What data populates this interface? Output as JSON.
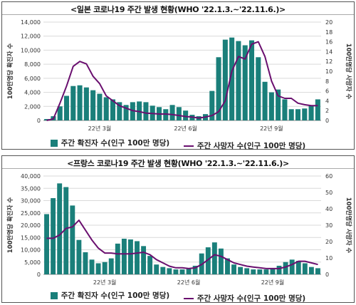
{
  "colors": {
    "cases": "#1a7f7a",
    "deaths": "#6a0f6f",
    "grid": "#d9d9d9"
  },
  "chart_data": [
    {
      "type": "bar",
      "title": "<일본 코로나19 주간 발생 현황(WHO '22.1.3.~'22.11.6.)>",
      "ylabel": "100만명당 확진자 수",
      "y2label": "100만명당 사망자 수",
      "ylim": [
        0,
        14000
      ],
      "y2lim": [
        0,
        20
      ],
      "yticks": [
        "0",
        "2,000",
        "4,000",
        "6,000",
        "8,000",
        "10,000",
        "12,000",
        "14,000"
      ],
      "y2ticks": [
        "0",
        "2",
        "4",
        "6",
        "8",
        "10",
        "12",
        "14",
        "16",
        "18",
        "20"
      ],
      "xticks": [
        {
          "label": "22년 3월",
          "index": 8
        },
        {
          "label": "22년 6월",
          "index": 21
        },
        {
          "label": "22년 9월",
          "index": 34
        }
      ],
      "series": [
        {
          "name": "주간 확진자 수(인구 100만 명당)",
          "kind": "bar",
          "values": [
            200,
            600,
            2000,
            3500,
            4900,
            5000,
            4700,
            4300,
            3800,
            3300,
            3000,
            2600,
            2200,
            2600,
            2700,
            2600,
            2100,
            1900,
            1600,
            2200,
            1900,
            1400,
            800,
            600,
            900,
            4200,
            9000,
            11500,
            11800,
            11300,
            10700,
            11400,
            9000,
            5500,
            4000,
            4400,
            3000,
            1600,
            1600,
            1700,
            2100,
            3000
          ]
        },
        {
          "name": "주간 사망자 수(인구 100만 명당)",
          "kind": "line",
          "values": [
            0,
            0.3,
            3.5,
            7,
            11,
            12,
            11.5,
            9,
            7.5,
            5,
            4,
            3,
            2.5,
            2,
            1.8,
            1.5,
            1.4,
            1.3,
            1.3,
            1.2,
            1,
            0.8,
            0.7,
            0.5,
            0.7,
            1,
            1.8,
            4,
            10,
            13,
            12.5,
            15.5,
            16,
            13,
            8,
            5,
            4.5,
            4.5,
            3.5,
            3.2,
            3,
            3
          ]
        }
      ],
      "legend": "bottom"
    },
    {
      "type": "bar",
      "title": "<프랑스 코로나19 주간 발생 현황(WHO '22.1.3.~'22.11.6.)>",
      "ylabel": "100만명당 확진자 수",
      "y2label": "100만명당 사망자 수",
      "ylim": [
        0,
        40000
      ],
      "y2lim": [
        0,
        60
      ],
      "yticks": [
        "0",
        "5,000",
        "10,000",
        "15,000",
        "20,000",
        "25,000",
        "30,000",
        "35,000",
        "40,000"
      ],
      "y2ticks": [
        "0",
        "10",
        "20",
        "30",
        "40",
        "50",
        "60"
      ],
      "xticks": [
        {
          "label": "22년 3월",
          "index": 9
        },
        {
          "label": "22년 6월",
          "index": 22
        },
        {
          "label": "22년 9월",
          "index": 35
        }
      ],
      "series": [
        {
          "name": "주간 확진자 수(인구 100만 명당)",
          "kind": "bar",
          "values": [
            24500,
            31000,
            37000,
            35500,
            28000,
            14000,
            9000,
            6000,
            4500,
            5000,
            6500,
            12500,
            14500,
            14200,
            13500,
            11500,
            7500,
            4000,
            3000,
            2500,
            2000,
            2000,
            2500,
            3500,
            8500,
            11000,
            13000,
            10500,
            6500,
            4000,
            3000,
            2500,
            2000,
            2000,
            2000,
            2500,
            3500,
            5000,
            6000,
            5500,
            4500,
            3000,
            2500
          ]
        },
        {
          "name": "주간 사망자 수(인구 100만 명당)",
          "kind": "line",
          "values": [
            22,
            22,
            24,
            28,
            29,
            33,
            27,
            21,
            16,
            13,
            13,
            12.5,
            12.5,
            12.5,
            13,
            13.5,
            12,
            9,
            7,
            5,
            4,
            4,
            3.5,
            4,
            6,
            9,
            12,
            11,
            9,
            7,
            6,
            5,
            4.5,
            4,
            3.5,
            3.5,
            3.5,
            4.5,
            6,
            8,
            8,
            7,
            6
          ]
        }
      ],
      "legend": "bottom"
    }
  ]
}
